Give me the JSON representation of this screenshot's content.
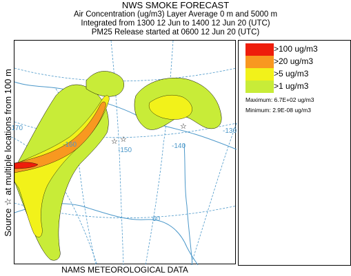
{
  "header": {
    "title": "NWS SMOKE FORECAST",
    "line2": "Air Concentration (ug/m3) Layer Average    0 m and  5000 m",
    "line3": "Integrated from 1300 12 Jun to 1400 12 Jun 20 (UTC)",
    "line4": "PM25 Release started at 0600 12 Jun 20 (UTC)"
  },
  "side_label": "Source ☆ at multiple locations    from    100 m",
  "footer": "NAMS METEOROLOGICAL DATA",
  "legend": {
    "items": [
      {
        "label": ">100 ug/m3",
        "color": "#ee1d0b"
      },
      {
        "label": ">20 ug/m3",
        "color": "#f89820"
      },
      {
        "label": ">5 ug/m3",
        "color": "#f2f21a"
      },
      {
        "label": ">1 ug/m3",
        "color": "#c8ec38"
      }
    ],
    "maximum": "Maximum: 6.7E+02 ug/m3",
    "minimum": "Minimum: 2.9E-08 ug/m3"
  },
  "map": {
    "graticule_labels": [
      "-170",
      "-160",
      "-150",
      "-140",
      "-130",
      "60"
    ],
    "line_color": "#4a97c9"
  }
}
